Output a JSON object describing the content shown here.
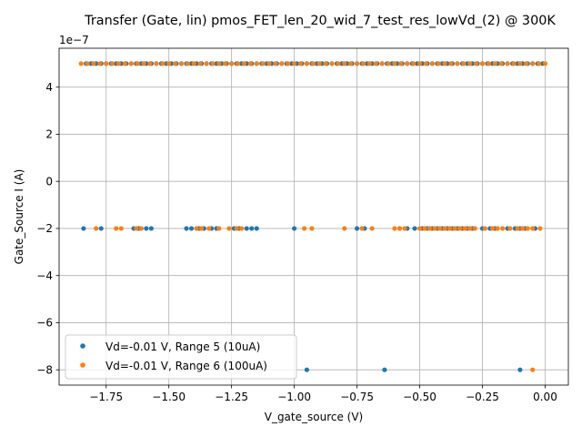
{
  "chart_data": {
    "type": "scatter",
    "title": "Transfer (Gate, lin) pmos_FET_len_20_wid_7_test_res_lowVd_(2) @ 300K",
    "xlabel": "V_gate_source (V)",
    "ylabel": "Gate_Source I (A)",
    "y_offset_label": "1e−7",
    "y_scale": 1e-07,
    "xlim": [
      -1.9375,
      0.0925
    ],
    "ylim": [
      -8.65e-07,
      5.65e-07
    ],
    "x_ticks": [
      -1.75,
      -1.5,
      -1.25,
      -1.0,
      -0.75,
      -0.5,
      -0.25,
      0.0
    ],
    "x_tick_labels": [
      "−1.75",
      "−1.50",
      "−1.25",
      "−1.00",
      "−0.75",
      "−0.50",
      "−0.25",
      "0.00"
    ],
    "y_ticks": [
      -8e-07,
      -6e-07,
      -4e-07,
      -2e-07,
      0,
      2e-07,
      4e-07
    ],
    "y_tick_labels": [
      "−8",
      "−6",
      "−4",
      "−2",
      "0",
      "2",
      "4"
    ],
    "grid": true,
    "legend_position": "lower-left",
    "series": [
      {
        "name": "Vd=-0.01 V, Range 5 (10uA)",
        "color": "#1f77b4",
        "points": [
          [
            -1.83,
            5e-07
          ],
          [
            -1.81,
            5e-07
          ],
          [
            -1.79,
            5e-07
          ],
          [
            -1.77,
            5e-07
          ],
          [
            -1.75,
            5e-07
          ],
          [
            -1.73,
            5e-07
          ],
          [
            -1.71,
            5e-07
          ],
          [
            -1.69,
            5e-07
          ],
          [
            -1.67,
            5e-07
          ],
          [
            -1.65,
            5e-07
          ],
          [
            -1.63,
            5e-07
          ],
          [
            -1.61,
            5e-07
          ],
          [
            -1.59,
            5e-07
          ],
          [
            -1.57,
            5e-07
          ],
          [
            -1.55,
            5e-07
          ],
          [
            -1.53,
            5e-07
          ],
          [
            -1.51,
            5e-07
          ],
          [
            -1.49,
            5e-07
          ],
          [
            -1.47,
            5e-07
          ],
          [
            -1.45,
            5e-07
          ],
          [
            -1.43,
            5e-07
          ],
          [
            -1.41,
            5e-07
          ],
          [
            -1.39,
            5e-07
          ],
          [
            -1.37,
            5e-07
          ],
          [
            -1.35,
            5e-07
          ],
          [
            -1.33,
            5e-07
          ],
          [
            -1.31,
            5e-07
          ],
          [
            -1.29,
            5e-07
          ],
          [
            -1.27,
            5e-07
          ],
          [
            -1.25,
            5e-07
          ],
          [
            -1.23,
            5e-07
          ],
          [
            -1.21,
            5e-07
          ],
          [
            -1.19,
            5e-07
          ],
          [
            -1.17,
            5e-07
          ],
          [
            -1.15,
            5e-07
          ],
          [
            -1.13,
            5e-07
          ],
          [
            -1.11,
            5e-07
          ],
          [
            -1.09,
            5e-07
          ],
          [
            -1.07,
            5e-07
          ],
          [
            -1.05,
            5e-07
          ],
          [
            -1.03,
            5e-07
          ],
          [
            -1.01,
            5e-07
          ],
          [
            -0.99,
            5e-07
          ],
          [
            -0.97,
            5e-07
          ],
          [
            -0.95,
            5e-07
          ],
          [
            -0.93,
            5e-07
          ],
          [
            -0.91,
            5e-07
          ],
          [
            -0.89,
            5e-07
          ],
          [
            -0.87,
            5e-07
          ],
          [
            -0.85,
            5e-07
          ],
          [
            -0.83,
            5e-07
          ],
          [
            -0.81,
            5e-07
          ],
          [
            -0.79,
            5e-07
          ],
          [
            -0.77,
            5e-07
          ],
          [
            -0.75,
            5e-07
          ],
          [
            -0.73,
            5e-07
          ],
          [
            -0.71,
            5e-07
          ],
          [
            -0.69,
            5e-07
          ],
          [
            -0.67,
            5e-07
          ],
          [
            -0.65,
            5e-07
          ],
          [
            -0.63,
            5e-07
          ],
          [
            -0.61,
            5e-07
          ],
          [
            -0.59,
            5e-07
          ],
          [
            -0.57,
            5e-07
          ],
          [
            -0.55,
            5e-07
          ],
          [
            -0.53,
            5e-07
          ],
          [
            -0.51,
            5e-07
          ],
          [
            -0.49,
            5e-07
          ],
          [
            -0.47,
            5e-07
          ],
          [
            -0.45,
            5e-07
          ],
          [
            -0.43,
            5e-07
          ],
          [
            -0.41,
            5e-07
          ],
          [
            -0.39,
            5e-07
          ],
          [
            -0.37,
            5e-07
          ],
          [
            -0.35,
            5e-07
          ],
          [
            -0.33,
            5e-07
          ],
          [
            -0.31,
            5e-07
          ],
          [
            -0.29,
            5e-07
          ],
          [
            -0.27,
            5e-07
          ],
          [
            -0.25,
            5e-07
          ],
          [
            -0.23,
            5e-07
          ],
          [
            -0.21,
            5e-07
          ],
          [
            -0.19,
            5e-07
          ],
          [
            -0.17,
            5e-07
          ],
          [
            -0.15,
            5e-07
          ],
          [
            -0.13,
            5e-07
          ],
          [
            -0.11,
            5e-07
          ],
          [
            -0.09,
            5e-07
          ],
          [
            -0.07,
            5e-07
          ],
          [
            -0.05,
            5e-07
          ],
          [
            -0.03,
            5e-07
          ],
          [
            -0.01,
            5e-07
          ],
          [
            -1.84,
            -2e-07
          ],
          [
            -1.77,
            -2e-07
          ],
          [
            -1.64,
            -2e-07
          ],
          [
            -1.62,
            -2e-07
          ],
          [
            -1.59,
            -2e-07
          ],
          [
            -1.57,
            -2e-07
          ],
          [
            -1.43,
            -2e-07
          ],
          [
            -1.41,
            -2e-07
          ],
          [
            -1.38,
            -2e-07
          ],
          [
            -1.36,
            -2e-07
          ],
          [
            -1.33,
            -2e-07
          ],
          [
            -1.31,
            -2e-07
          ],
          [
            -1.24,
            -2e-07
          ],
          [
            -1.22,
            -2e-07
          ],
          [
            -1.19,
            -2e-07
          ],
          [
            -1.17,
            -2e-07
          ],
          [
            -1.15,
            -2e-07
          ],
          [
            -1.0,
            -2e-07
          ],
          [
            -0.75,
            -2e-07
          ],
          [
            -0.72,
            -2e-07
          ],
          [
            -0.58,
            -2e-07
          ],
          [
            -0.55,
            -2e-07
          ],
          [
            -0.52,
            -2e-07
          ],
          [
            -0.49,
            -2e-07
          ],
          [
            -0.47,
            -2e-07
          ],
          [
            -0.45,
            -2e-07
          ],
          [
            -0.43,
            -2e-07
          ],
          [
            -0.41,
            -2e-07
          ],
          [
            -0.39,
            -2e-07
          ],
          [
            -0.37,
            -2e-07
          ],
          [
            -0.35,
            -2e-07
          ],
          [
            -0.33,
            -2e-07
          ],
          [
            -0.31,
            -2e-07
          ],
          [
            -0.29,
            -2e-07
          ],
          [
            -0.25,
            -2e-07
          ],
          [
            -0.22,
            -2e-07
          ],
          [
            -0.2,
            -2e-07
          ],
          [
            -0.15,
            -2e-07
          ],
          [
            -0.12,
            -2e-07
          ],
          [
            -0.1,
            -2e-07
          ],
          [
            -0.08,
            -2e-07
          ],
          [
            -0.04,
            -2e-07
          ],
          [
            -0.95,
            -8e-07
          ],
          [
            -0.64,
            -8e-07
          ],
          [
            -0.1,
            -8e-07
          ]
        ]
      },
      {
        "name": "Vd=-0.01 V, Range 6 (100uA)",
        "color": "#ff7f0e",
        "points": [
          [
            -1.85,
            5e-07
          ],
          [
            -1.825,
            5e-07
          ],
          [
            -1.8,
            5e-07
          ],
          [
            -1.775,
            5e-07
          ],
          [
            -1.75,
            5e-07
          ],
          [
            -1.725,
            5e-07
          ],
          [
            -1.7,
            5e-07
          ],
          [
            -1.675,
            5e-07
          ],
          [
            -1.65,
            5e-07
          ],
          [
            -1.625,
            5e-07
          ],
          [
            -1.6,
            5e-07
          ],
          [
            -1.575,
            5e-07
          ],
          [
            -1.55,
            5e-07
          ],
          [
            -1.525,
            5e-07
          ],
          [
            -1.5,
            5e-07
          ],
          [
            -1.475,
            5e-07
          ],
          [
            -1.45,
            5e-07
          ],
          [
            -1.425,
            5e-07
          ],
          [
            -1.4,
            5e-07
          ],
          [
            -1.375,
            5e-07
          ],
          [
            -1.35,
            5e-07
          ],
          [
            -1.325,
            5e-07
          ],
          [
            -1.3,
            5e-07
          ],
          [
            -1.275,
            5e-07
          ],
          [
            -1.25,
            5e-07
          ],
          [
            -1.225,
            5e-07
          ],
          [
            -1.2,
            5e-07
          ],
          [
            -1.175,
            5e-07
          ],
          [
            -1.15,
            5e-07
          ],
          [
            -1.125,
            5e-07
          ],
          [
            -1.1,
            5e-07
          ],
          [
            -1.075,
            5e-07
          ],
          [
            -1.05,
            5e-07
          ],
          [
            -1.025,
            5e-07
          ],
          [
            -1.0,
            5e-07
          ],
          [
            -0.975,
            5e-07
          ],
          [
            -0.95,
            5e-07
          ],
          [
            -0.925,
            5e-07
          ],
          [
            -0.9,
            5e-07
          ],
          [
            -0.875,
            5e-07
          ],
          [
            -0.85,
            5e-07
          ],
          [
            -0.825,
            5e-07
          ],
          [
            -0.8,
            5e-07
          ],
          [
            -0.775,
            5e-07
          ],
          [
            -0.75,
            5e-07
          ],
          [
            -0.725,
            5e-07
          ],
          [
            -0.7,
            5e-07
          ],
          [
            -0.675,
            5e-07
          ],
          [
            -0.65,
            5e-07
          ],
          [
            -0.625,
            5e-07
          ],
          [
            -0.6,
            5e-07
          ],
          [
            -0.575,
            5e-07
          ],
          [
            -0.55,
            5e-07
          ],
          [
            -0.525,
            5e-07
          ],
          [
            -0.5,
            5e-07
          ],
          [
            -0.475,
            5e-07
          ],
          [
            -0.45,
            5e-07
          ],
          [
            -0.425,
            5e-07
          ],
          [
            -0.4,
            5e-07
          ],
          [
            -0.375,
            5e-07
          ],
          [
            -0.35,
            5e-07
          ],
          [
            -0.325,
            5e-07
          ],
          [
            -0.3,
            5e-07
          ],
          [
            -0.275,
            5e-07
          ],
          [
            -0.25,
            5e-07
          ],
          [
            -0.225,
            5e-07
          ],
          [
            -0.2,
            5e-07
          ],
          [
            -0.175,
            5e-07
          ],
          [
            -0.15,
            5e-07
          ],
          [
            -0.125,
            5e-07
          ],
          [
            -0.1,
            5e-07
          ],
          [
            -0.075,
            5e-07
          ],
          [
            -0.05,
            5e-07
          ],
          [
            -0.025,
            5e-07
          ],
          [
            0.0,
            5e-07
          ],
          [
            -1.79,
            -2e-07
          ],
          [
            -1.71,
            -2e-07
          ],
          [
            -1.69,
            -2e-07
          ],
          [
            -1.63,
            -2e-07
          ],
          [
            -1.61,
            -2e-07
          ],
          [
            -1.39,
            -2e-07
          ],
          [
            -1.37,
            -2e-07
          ],
          [
            -1.34,
            -2e-07
          ],
          [
            -1.3,
            -2e-07
          ],
          [
            -1.26,
            -2e-07
          ],
          [
            -1.23,
            -2e-07
          ],
          [
            -1.21,
            -2e-07
          ],
          [
            -0.96,
            -2e-07
          ],
          [
            -0.93,
            -2e-07
          ],
          [
            -0.8,
            -2e-07
          ],
          [
            -0.73,
            -2e-07
          ],
          [
            -0.69,
            -2e-07
          ],
          [
            -0.6,
            -2e-07
          ],
          [
            -0.58,
            -2e-07
          ],
          [
            -0.56,
            -2e-07
          ],
          [
            -0.5,
            -2e-07
          ],
          [
            -0.48,
            -2e-07
          ],
          [
            -0.46,
            -2e-07
          ],
          [
            -0.44,
            -2e-07
          ],
          [
            -0.42,
            -2e-07
          ],
          [
            -0.4,
            -2e-07
          ],
          [
            -0.38,
            -2e-07
          ],
          [
            -0.36,
            -2e-07
          ],
          [
            -0.34,
            -2e-07
          ],
          [
            -0.32,
            -2e-07
          ],
          [
            -0.3,
            -2e-07
          ],
          [
            -0.28,
            -2e-07
          ],
          [
            -0.24,
            -2e-07
          ],
          [
            -0.21,
            -2e-07
          ],
          [
            -0.19,
            -2e-07
          ],
          [
            -0.17,
            -2e-07
          ],
          [
            -0.14,
            -2e-07
          ],
          [
            -0.11,
            -2e-07
          ],
          [
            -0.09,
            -2e-07
          ],
          [
            -0.07,
            -2e-07
          ],
          [
            -0.05,
            -2e-07
          ],
          [
            -0.02,
            -2e-07
          ],
          [
            -0.05,
            -8e-07
          ]
        ]
      }
    ]
  }
}
